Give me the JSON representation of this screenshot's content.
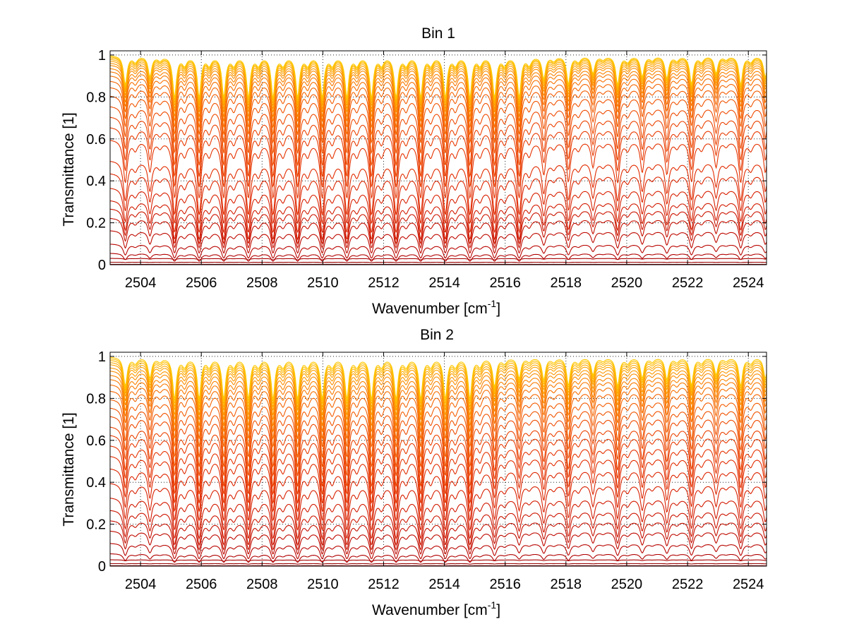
{
  "chart_data": [
    {
      "type": "line",
      "title": "Bin 1",
      "xlabel": "Wavenumber [cm",
      "xlabel_superscript": "-1",
      "xlabel_suffix": "]",
      "ylabel": "Transmittance [1]",
      "xlim": [
        2503.0,
        2524.6
      ],
      "ylim": [
        0,
        1.02
      ],
      "xticks": [
        2504,
        2506,
        2508,
        2510,
        2512,
        2514,
        2516,
        2518,
        2520,
        2522,
        2524
      ],
      "yticks": [
        0,
        0.2,
        0.4,
        0.6,
        0.8,
        1
      ],
      "ytick_labels": [
        "0",
        "0.2",
        "0.4",
        "0.6",
        "0.8",
        "1"
      ],
      "grid": true,
      "line_spacing_cm-1": 0.81,
      "line_start_cm-1": 2503.5,
      "strong_region_cm-1": [
        2505.0,
        2516.5
      ],
      "series_levels": [
        0.002,
        0.012,
        0.03,
        0.055,
        0.1,
        0.165,
        0.225,
        0.27,
        0.31,
        0.37,
        0.44,
        0.5,
        0.6,
        0.66,
        0.71,
        0.76,
        0.81,
        0.85,
        0.88,
        0.905,
        0.925,
        0.94,
        0.955,
        0.965,
        0.975,
        0.983,
        0.99,
        0.995,
        1.0
      ],
      "series_colors": [
        "#8b0000",
        "#9a0000",
        "#a80000",
        "#b00000",
        "#b80500",
        "#bf0a00",
        "#c51000",
        "#cc1500",
        "#d21a00",
        "#d82000",
        "#dd2600",
        "#e12c00",
        "#e53300",
        "#e83a00",
        "#eb4200",
        "#ee4a00",
        "#f05300",
        "#f35c00",
        "#f56500",
        "#f76f00",
        "#f97900",
        "#fa8300",
        "#fb8d00",
        "#fc9700",
        "#fda100",
        "#feab00",
        "#ffb500",
        "#ffbf00",
        "#ffc800"
      ]
    },
    {
      "type": "line",
      "title": "Bin 2",
      "xlabel": "Wavenumber [cm",
      "xlabel_superscript": "-1",
      "xlabel_suffix": "]",
      "ylabel": "Transmittance [1]",
      "xlim": [
        2503.0,
        2524.6
      ],
      "ylim": [
        0,
        1.02
      ],
      "xticks": [
        2504,
        2506,
        2508,
        2510,
        2512,
        2514,
        2516,
        2518,
        2520,
        2522,
        2524
      ],
      "yticks": [
        0,
        0.2,
        0.4,
        0.6,
        0.8,
        1
      ],
      "ytick_labels": [
        "0",
        "0.2",
        "0.4",
        "0.6",
        "0.8",
        "1"
      ],
      "grid": true,
      "line_spacing_cm-1": 0.81,
      "line_start_cm-1": 2503.5,
      "strong_region_cm-1": [
        2504.5,
        2515.0
      ],
      "series_levels": [
        0.002,
        0.012,
        0.03,
        0.06,
        0.11,
        0.17,
        0.22,
        0.27,
        0.33,
        0.4,
        0.47,
        0.53,
        0.58,
        0.63,
        0.67,
        0.72,
        0.76,
        0.8,
        0.84,
        0.87,
        0.895,
        0.915,
        0.935,
        0.95,
        0.965,
        0.975,
        0.985,
        0.993,
        1.0
      ],
      "series_colors": [
        "#8b0000",
        "#9a0000",
        "#a80000",
        "#b00000",
        "#b80500",
        "#bf0a00",
        "#c51000",
        "#cc1500",
        "#d21a00",
        "#d82000",
        "#dd2600",
        "#e12c00",
        "#e53300",
        "#e83a00",
        "#eb4200",
        "#ee4a00",
        "#f05300",
        "#f35c00",
        "#f56500",
        "#f76f00",
        "#f97900",
        "#fa8300",
        "#fb8d00",
        "#fc9700",
        "#fda100",
        "#feab00",
        "#ffb500",
        "#ffbf00",
        "#ffc800"
      ]
    }
  ]
}
